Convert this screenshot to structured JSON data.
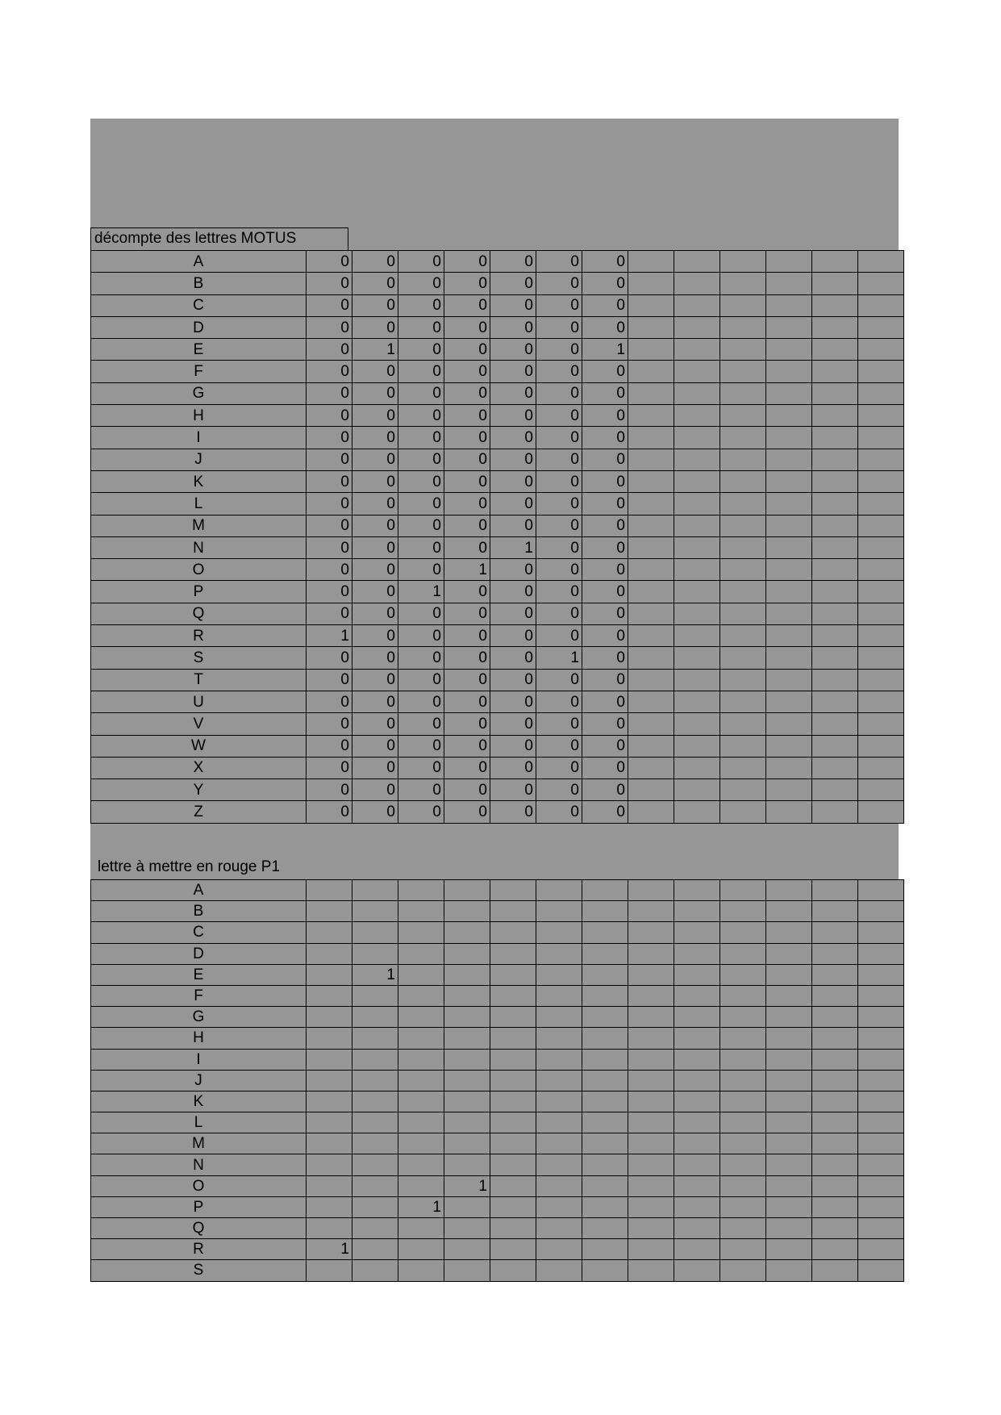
{
  "section1": {
    "title": "décompte des lettres MOTUS",
    "rows": [
      {
        "letter": "A",
        "values": [
          0,
          0,
          0,
          0,
          0,
          0,
          0
        ]
      },
      {
        "letter": "B",
        "values": [
          0,
          0,
          0,
          0,
          0,
          0,
          0
        ]
      },
      {
        "letter": "C",
        "values": [
          0,
          0,
          0,
          0,
          0,
          0,
          0
        ]
      },
      {
        "letter": "D",
        "values": [
          0,
          0,
          0,
          0,
          0,
          0,
          0
        ]
      },
      {
        "letter": "E",
        "values": [
          0,
          1,
          0,
          0,
          0,
          0,
          1
        ]
      },
      {
        "letter": "F",
        "values": [
          0,
          0,
          0,
          0,
          0,
          0,
          0
        ]
      },
      {
        "letter": "G",
        "values": [
          0,
          0,
          0,
          0,
          0,
          0,
          0
        ]
      },
      {
        "letter": "H",
        "values": [
          0,
          0,
          0,
          0,
          0,
          0,
          0
        ]
      },
      {
        "letter": "I",
        "values": [
          0,
          0,
          0,
          0,
          0,
          0,
          0
        ]
      },
      {
        "letter": "J",
        "values": [
          0,
          0,
          0,
          0,
          0,
          0,
          0
        ]
      },
      {
        "letter": "K",
        "values": [
          0,
          0,
          0,
          0,
          0,
          0,
          0
        ]
      },
      {
        "letter": "L",
        "values": [
          0,
          0,
          0,
          0,
          0,
          0,
          0
        ]
      },
      {
        "letter": "M",
        "values": [
          0,
          0,
          0,
          0,
          0,
          0,
          0
        ]
      },
      {
        "letter": "N",
        "values": [
          0,
          0,
          0,
          0,
          1,
          0,
          0
        ]
      },
      {
        "letter": "O",
        "values": [
          0,
          0,
          0,
          1,
          0,
          0,
          0
        ]
      },
      {
        "letter": "P",
        "values": [
          0,
          0,
          1,
          0,
          0,
          0,
          0
        ]
      },
      {
        "letter": "Q",
        "values": [
          0,
          0,
          0,
          0,
          0,
          0,
          0
        ]
      },
      {
        "letter": "R",
        "values": [
          1,
          0,
          0,
          0,
          0,
          0,
          0
        ]
      },
      {
        "letter": "S",
        "values": [
          0,
          0,
          0,
          0,
          0,
          1,
          0
        ]
      },
      {
        "letter": "T",
        "values": [
          0,
          0,
          0,
          0,
          0,
          0,
          0
        ]
      },
      {
        "letter": "U",
        "values": [
          0,
          0,
          0,
          0,
          0,
          0,
          0
        ]
      },
      {
        "letter": "V",
        "values": [
          0,
          0,
          0,
          0,
          0,
          0,
          0
        ]
      },
      {
        "letter": "W",
        "values": [
          0,
          0,
          0,
          0,
          0,
          0,
          0
        ]
      },
      {
        "letter": "X",
        "values": [
          0,
          0,
          0,
          0,
          0,
          0,
          0
        ]
      },
      {
        "letter": "Y",
        "values": [
          0,
          0,
          0,
          0,
          0,
          0,
          0
        ]
      },
      {
        "letter": "Z",
        "values": [
          0,
          0,
          0,
          0,
          0,
          0,
          0
        ]
      }
    ]
  },
  "section2": {
    "title": "lettre à mettre en rouge P1",
    "rows": [
      {
        "letter": "A",
        "values": [
          "",
          "",
          "",
          "",
          "",
          "",
          ""
        ]
      },
      {
        "letter": "B",
        "values": [
          "",
          "",
          "",
          "",
          "",
          "",
          ""
        ]
      },
      {
        "letter": "C",
        "values": [
          "",
          "",
          "",
          "",
          "",
          "",
          ""
        ]
      },
      {
        "letter": "D",
        "values": [
          "",
          "",
          "",
          "",
          "",
          "",
          ""
        ]
      },
      {
        "letter": "E",
        "values": [
          "",
          "1",
          "",
          "",
          "",
          "",
          ""
        ]
      },
      {
        "letter": "F",
        "values": [
          "",
          "",
          "",
          "",
          "",
          "",
          ""
        ]
      },
      {
        "letter": "G",
        "values": [
          "",
          "",
          "",
          "",
          "",
          "",
          ""
        ]
      },
      {
        "letter": "H",
        "values": [
          "",
          "",
          "",
          "",
          "",
          "",
          ""
        ]
      },
      {
        "letter": "I",
        "values": [
          "",
          "",
          "",
          "",
          "",
          "",
          ""
        ]
      },
      {
        "letter": "J",
        "values": [
          "",
          "",
          "",
          "",
          "",
          "",
          ""
        ]
      },
      {
        "letter": "K",
        "values": [
          "",
          "",
          "",
          "",
          "",
          "",
          ""
        ]
      },
      {
        "letter": "L",
        "values": [
          "",
          "",
          "",
          "",
          "",
          "",
          ""
        ]
      },
      {
        "letter": "M",
        "values": [
          "",
          "",
          "",
          "",
          "",
          "",
          ""
        ]
      },
      {
        "letter": "N",
        "values": [
          "",
          "",
          "",
          "",
          "",
          "",
          ""
        ]
      },
      {
        "letter": "O",
        "values": [
          "",
          "",
          "",
          "1",
          "",
          "",
          ""
        ]
      },
      {
        "letter": "P",
        "values": [
          "",
          "",
          "1",
          "",
          "",
          "",
          ""
        ]
      },
      {
        "letter": "Q",
        "values": [
          "",
          "",
          "",
          "",
          "",
          "",
          ""
        ]
      },
      {
        "letter": "R",
        "values": [
          "1",
          "",
          "",
          "",
          "",
          "",
          ""
        ]
      },
      {
        "letter": "S",
        "values": [
          "",
          "",
          "",
          "",
          "",
          "",
          ""
        ]
      }
    ]
  },
  "background_color": "#969696"
}
